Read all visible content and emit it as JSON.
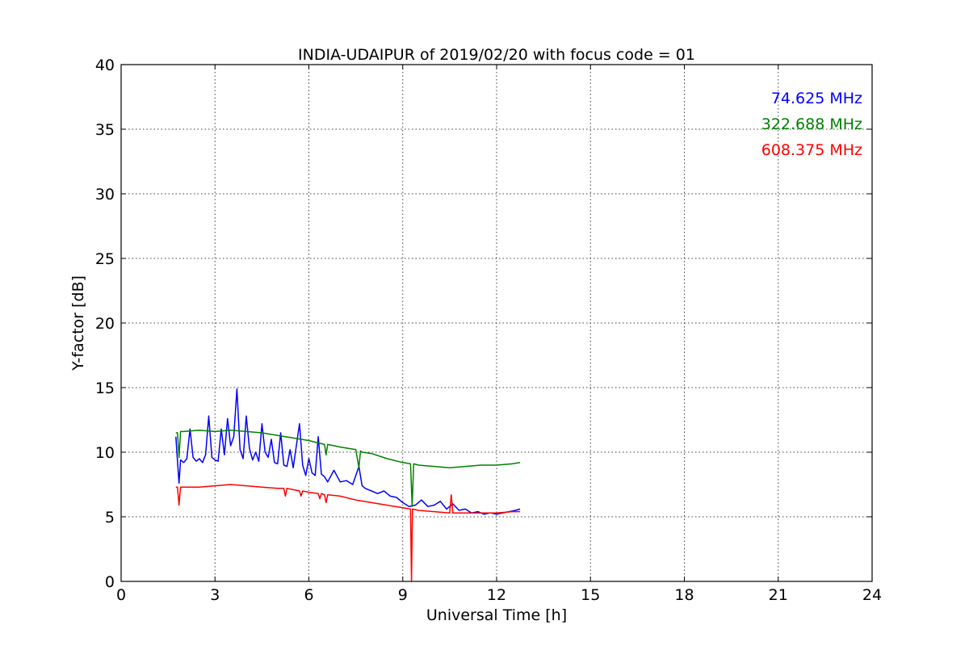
{
  "chart_data": {
    "type": "line",
    "title": "INDIA-UDAIPUR of 2019/02/20 with focus code = 01",
    "xlabel": "Universal Time [h]",
    "ylabel": "Y-factor [dB]",
    "xlim": [
      0,
      24
    ],
    "ylim": [
      0,
      40
    ],
    "xticks": [
      0,
      3,
      6,
      9,
      12,
      15,
      18,
      21,
      24
    ],
    "yticks": [
      0,
      5,
      10,
      15,
      20,
      25,
      30,
      35,
      40
    ],
    "grid": true,
    "legend_position": "top-right",
    "series": [
      {
        "name": "74.625 MHz",
        "color": "#0000ff",
        "x": [
          1.75,
          1.8,
          1.85,
          1.9,
          2.0,
          2.1,
          2.2,
          2.3,
          2.4,
          2.5,
          2.6,
          2.7,
          2.8,
          2.9,
          3.0,
          3.1,
          3.2,
          3.3,
          3.4,
          3.5,
          3.6,
          3.7,
          3.8,
          3.9,
          4.0,
          4.1,
          4.2,
          4.3,
          4.4,
          4.5,
          4.6,
          4.7,
          4.8,
          4.9,
          5.0,
          5.1,
          5.2,
          5.3,
          5.4,
          5.5,
          5.6,
          5.7,
          5.8,
          5.9,
          6.0,
          6.1,
          6.2,
          6.3,
          6.4,
          6.5,
          6.6,
          6.8,
          7.0,
          7.2,
          7.4,
          7.6,
          7.7,
          7.8,
          8.0,
          8.2,
          8.4,
          8.6,
          8.8,
          9.0,
          9.2,
          9.4,
          9.6,
          9.8,
          10.0,
          10.2,
          10.4,
          10.6,
          10.8,
          11.0,
          11.2,
          11.4,
          11.6,
          11.8,
          12.0,
          12.2,
          12.4,
          12.6,
          12.75
        ],
        "y": [
          11.2,
          9.3,
          7.6,
          9.4,
          9.2,
          9.5,
          11.8,
          9.6,
          9.3,
          9.5,
          9.2,
          9.8,
          12.8,
          9.6,
          9.4,
          9.3,
          11.8,
          9.8,
          12.6,
          10.5,
          11.2,
          14.9,
          10.2,
          9.5,
          12.8,
          10.3,
          9.4,
          10.0,
          9.3,
          12.2,
          10.0,
          9.6,
          11.0,
          9.2,
          9.1,
          11.5,
          9.0,
          8.9,
          10.2,
          8.8,
          10.5,
          12.2,
          9.0,
          8.2,
          9.5,
          8.4,
          8.2,
          11.2,
          8.3,
          8.1,
          7.7,
          8.6,
          7.7,
          7.8,
          7.5,
          8.9,
          7.4,
          7.2,
          7.0,
          6.8,
          7.0,
          6.6,
          6.5,
          6.1,
          5.8,
          5.9,
          6.3,
          5.8,
          5.9,
          6.2,
          5.6,
          6.0,
          5.5,
          5.6,
          5.3,
          5.4,
          5.2,
          5.3,
          5.2,
          5.3,
          5.4,
          5.5,
          5.6
        ]
      },
      {
        "name": "322.688 MHz",
        "color": "#008000",
        "x": [
          1.75,
          1.8,
          1.85,
          1.9,
          2.0,
          2.5,
          3.0,
          3.5,
          4.0,
          4.5,
          5.0,
          5.5,
          6.0,
          6.5,
          6.55,
          6.6,
          7.0,
          7.5,
          7.6,
          7.65,
          7.7,
          8.0,
          8.5,
          9.0,
          9.25,
          9.3,
          9.35,
          9.5,
          10.0,
          10.5,
          11.0,
          11.5,
          12.0,
          12.5,
          12.75
        ],
        "y": [
          11.5,
          11.5,
          9.6,
          11.6,
          11.6,
          11.7,
          11.6,
          11.7,
          11.6,
          11.5,
          11.3,
          11.1,
          10.9,
          10.6,
          9.8,
          10.6,
          10.4,
          10.2,
          8.8,
          10.1,
          10.0,
          9.9,
          9.5,
          9.2,
          9.1,
          5.8,
          9.1,
          9.0,
          8.9,
          8.8,
          8.9,
          9.0,
          9.0,
          9.1,
          9.2
        ]
      },
      {
        "name": "608.375 MHz",
        "color": "#ff0000",
        "x": [
          1.75,
          1.8,
          1.85,
          1.9,
          2.0,
          2.5,
          3.0,
          3.5,
          4.0,
          4.5,
          5.0,
          5.2,
          5.25,
          5.3,
          5.5,
          5.7,
          5.75,
          5.8,
          6.0,
          6.3,
          6.35,
          6.4,
          6.5,
          6.55,
          6.6,
          7.0,
          7.5,
          8.0,
          8.5,
          9.0,
          9.25,
          9.28,
          9.31,
          9.5,
          10.0,
          10.5,
          10.55,
          10.6,
          11.0,
          11.5,
          12.0,
          12.5,
          12.75
        ],
        "y": [
          7.3,
          7.3,
          5.9,
          7.3,
          7.3,
          7.3,
          7.4,
          7.5,
          7.4,
          7.3,
          7.2,
          7.2,
          6.6,
          7.2,
          7.1,
          7.0,
          6.6,
          7.0,
          6.9,
          6.8,
          6.4,
          6.8,
          6.7,
          6.1,
          6.7,
          6.6,
          6.3,
          6.1,
          5.9,
          5.7,
          5.6,
          0.0,
          5.6,
          5.5,
          5.4,
          5.3,
          6.7,
          5.3,
          5.3,
          5.3,
          5.3,
          5.4,
          5.4
        ]
      }
    ]
  }
}
